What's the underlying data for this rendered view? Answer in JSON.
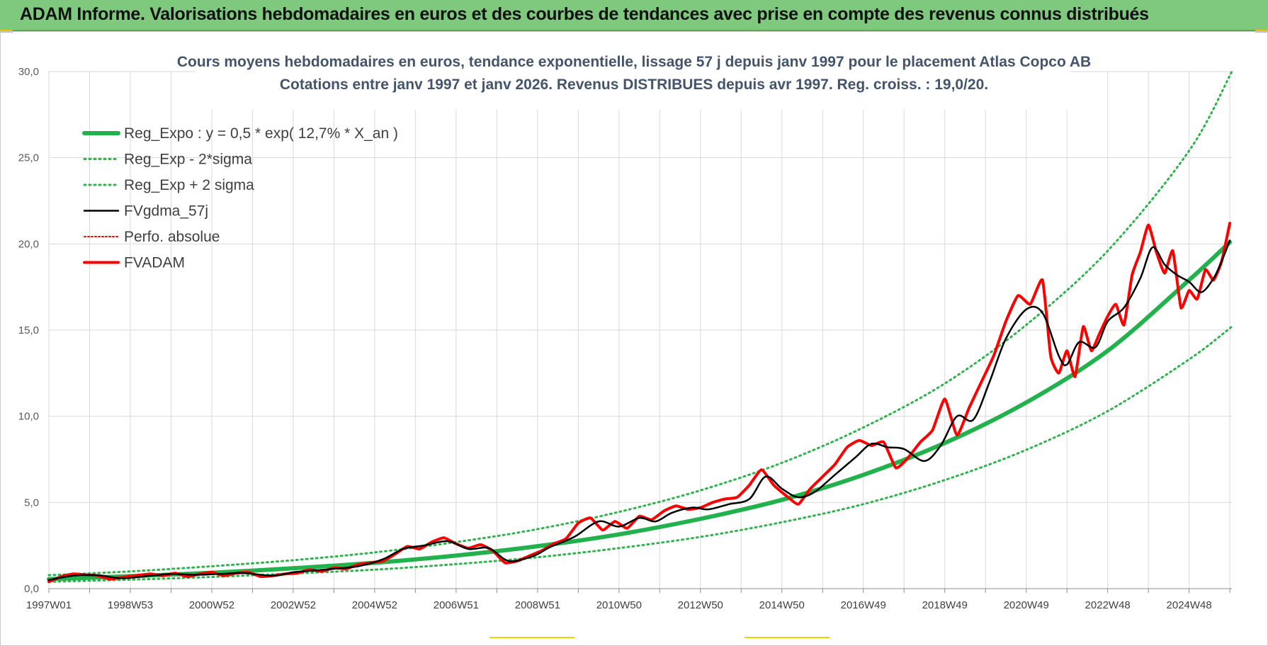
{
  "banner": {
    "title": "ADAM Informe. Valorisations hebdomadaires en euros et des courbes de tendances avec prise en compte des revenus connus distribués"
  },
  "colors": {
    "banner_bg": "#7fc97f",
    "trend_green": "#22b14c",
    "band_green": "#2fb34f",
    "smooth_black": "#000000",
    "price_red": "#ff0000",
    "title_slate": "#44546a"
  },
  "chart_data": {
    "type": "line",
    "title_line1": "Cours moyens hebdomadaires en euros, tendance exponentielle, lissage 57 j depuis janv 1997 pour le placement Atlas Copco AB",
    "title_line2": "Cotations entre janv 1997 et janv 2026. Revenus DISTRIBUES depuis avr 1997.  Reg. croiss. : 19,0/20.",
    "x_range_years": [
      1997.0,
      2026.05
    ],
    "ylim": [
      0,
      30
    ],
    "y_ticks": [
      "0,0",
      "5,0",
      "10,0",
      "15,0",
      "20,0",
      "25,0",
      "30,0"
    ],
    "x_tick_labels": [
      "1997W01",
      "1998W53",
      "2000W52",
      "2002W52",
      "2004W52",
      "2006W51",
      "2008W51",
      "2010W50",
      "2012W50",
      "2014W50",
      "2016W49",
      "2018W49",
      "2020W49",
      "2022W48",
      "2024W48"
    ],
    "x_tick_years": [
      1997.0,
      1999.0,
      2001.0,
      2003.0,
      2005.0,
      2007.0,
      2009.0,
      2011.0,
      2013.0,
      2015.0,
      2017.0,
      2019.0,
      2021.0,
      2023.0,
      2025.0
    ],
    "legend": [
      {
        "label": "Reg_Expo : y = 0,5 * exp( 12,7% *  X_an )",
        "style": "solid-thick-green"
      },
      {
        "label": "Reg_Exp - 2*sigma",
        "style": "dotted-green"
      },
      {
        "label": "Reg_Exp + 2 sigma",
        "style": "dotted-green"
      },
      {
        "label": "FVgdma_57j",
        "style": "solid-black"
      },
      {
        "label": "Perfo. absolue",
        "style": "dotted-red"
      },
      {
        "label": "FVADAM",
        "style": "solid-thick-red"
      }
    ],
    "series": [
      {
        "name": "Reg_Expo",
        "formula": "y = 0,5 * exp(12,7% * X_an)",
        "x": [
          1997.0,
          1999.0,
          2001.0,
          2003.0,
          2005.0,
          2007.0,
          2009.0,
          2011.0,
          2013.0,
          2015.0,
          2017.0,
          2019.0,
          2021.0,
          2023.0,
          2025.0,
          2026.0
        ],
        "values": [
          0.55,
          0.72,
          0.92,
          1.18,
          1.5,
          1.92,
          2.46,
          3.15,
          4.05,
          5.15,
          6.6,
          8.45,
          10.8,
          13.8,
          17.9,
          20.1
        ]
      },
      {
        "name": "Reg_Exp - 2*sigma",
        "x": [
          1997.0,
          1999.0,
          2001.0,
          2003.0,
          2005.0,
          2007.0,
          2009.0,
          2011.0,
          2013.0,
          2015.0,
          2017.0,
          2019.0,
          2021.0,
          2023.0,
          2025.0,
          2026.05
        ],
        "values": [
          0.4,
          0.52,
          0.68,
          0.88,
          1.1,
          1.42,
          1.82,
          2.35,
          3.0,
          3.85,
          4.9,
          6.3,
          8.05,
          10.3,
          13.3,
          15.2
        ]
      },
      {
        "name": "Reg_Exp + 2 sigma",
        "x": [
          1997.0,
          1999.0,
          2001.0,
          2003.0,
          2005.0,
          2007.0,
          2009.0,
          2011.0,
          2013.0,
          2015.0,
          2017.0,
          2019.0,
          2021.0,
          2023.0,
          2025.0,
          2026.05
        ],
        "values": [
          0.78,
          1.0,
          1.3,
          1.65,
          2.1,
          2.7,
          3.45,
          4.45,
          5.7,
          7.3,
          9.35,
          11.9,
          15.3,
          19.6,
          25.4,
          30.0
        ]
      },
      {
        "name": "FVgdma_57j",
        "x": [
          1997.0,
          1997.6,
          1998.2,
          1998.8,
          1999.5,
          2000.0,
          2000.6,
          2001.2,
          2001.8,
          2002.5,
          2003.0,
          2003.5,
          2004.0,
          2004.6,
          2005.2,
          2005.7,
          2006.2,
          2006.8,
          2007.3,
          2007.8,
          2008.3,
          2008.9,
          2009.3,
          2009.9,
          2010.5,
          2011.0,
          2011.5,
          2011.9,
          2012.3,
          2012.8,
          2013.2,
          2013.7,
          2014.2,
          2014.6,
          2015.0,
          2015.4,
          2015.8,
          2016.3,
          2016.8,
          2017.2,
          2017.6,
          2018.0,
          2018.5,
          2018.9,
          2019.3,
          2019.7,
          2020.1,
          2020.5,
          2021.0,
          2021.4,
          2021.8,
          2022.0,
          2022.3,
          2022.7,
          2023.0,
          2023.4,
          2023.8,
          2024.1,
          2024.4,
          2024.7,
          2025.0,
          2025.3,
          2025.6,
          2025.8,
          2026.0
        ],
        "values": [
          0.5,
          0.75,
          0.78,
          0.6,
          0.75,
          0.85,
          0.8,
          0.85,
          0.9,
          0.75,
          0.95,
          1.05,
          1.15,
          1.3,
          1.7,
          2.3,
          2.5,
          2.75,
          2.3,
          2.35,
          1.6,
          1.9,
          2.4,
          3.0,
          3.9,
          3.6,
          4.1,
          3.9,
          4.4,
          4.7,
          4.6,
          4.9,
          5.2,
          6.5,
          5.8,
          5.3,
          5.6,
          6.6,
          7.6,
          8.4,
          8.2,
          8.1,
          7.4,
          8.3,
          10.0,
          9.8,
          12.0,
          14.5,
          16.2,
          16.0,
          13.5,
          13.0,
          14.3,
          14.0,
          15.5,
          16.3,
          18.0,
          19.8,
          18.8,
          18.2,
          17.8,
          17.2,
          18.0,
          19.0,
          20.2
        ]
      },
      {
        "name": "FVADAM",
        "x": [
          1997.0,
          1997.3,
          1997.6,
          1997.9,
          1998.2,
          1998.5,
          1998.8,
          1999.1,
          1999.5,
          1999.8,
          2000.1,
          2000.4,
          2000.7,
          2001.0,
          2001.3,
          2001.6,
          2001.9,
          2002.2,
          2002.5,
          2002.8,
          2003.1,
          2003.4,
          2003.7,
          2004.0,
          2004.3,
          2004.6,
          2004.9,
          2005.2,
          2005.5,
          2005.8,
          2006.1,
          2006.4,
          2006.7,
          2007.0,
          2007.3,
          2007.6,
          2007.9,
          2008.2,
          2008.5,
          2008.8,
          2009.1,
          2009.4,
          2009.7,
          2010.0,
          2010.3,
          2010.6,
          2010.9,
          2011.2,
          2011.5,
          2011.8,
          2012.1,
          2012.4,
          2012.7,
          2013.0,
          2013.3,
          2013.6,
          2013.9,
          2014.2,
          2014.5,
          2014.8,
          2015.1,
          2015.4,
          2015.7,
          2016.0,
          2016.3,
          2016.6,
          2016.9,
          2017.2,
          2017.5,
          2017.8,
          2018.1,
          2018.4,
          2018.7,
          2019.0,
          2019.3,
          2019.6,
          2019.9,
          2020.2,
          2020.5,
          2020.8,
          2021.1,
          2021.4,
          2021.6,
          2021.8,
          2022.0,
          2022.2,
          2022.4,
          2022.6,
          2022.8,
          2023.0,
          2023.2,
          2023.4,
          2023.6,
          2023.8,
          2024.0,
          2024.2,
          2024.4,
          2024.6,
          2024.8,
          2025.0,
          2025.2,
          2025.4,
          2025.6,
          2025.8,
          2026.0
        ],
        "values": [
          0.4,
          0.7,
          0.85,
          0.8,
          0.75,
          0.55,
          0.65,
          0.75,
          0.85,
          0.75,
          0.9,
          0.7,
          0.85,
          0.95,
          0.75,
          0.9,
          0.95,
          0.7,
          0.75,
          0.85,
          0.9,
          1.1,
          1.0,
          1.2,
          1.15,
          1.4,
          1.5,
          1.6,
          2.0,
          2.45,
          2.3,
          2.7,
          2.95,
          2.6,
          2.35,
          2.55,
          2.2,
          1.5,
          1.6,
          1.9,
          2.2,
          2.6,
          2.9,
          3.8,
          4.1,
          3.4,
          3.9,
          3.5,
          4.2,
          4.0,
          4.5,
          4.8,
          4.6,
          4.7,
          5.0,
          5.2,
          5.3,
          6.0,
          6.9,
          6.0,
          5.4,
          4.9,
          5.8,
          6.5,
          7.2,
          8.2,
          8.6,
          8.3,
          8.5,
          7.0,
          7.6,
          8.5,
          9.2,
          11.0,
          8.9,
          10.5,
          12.0,
          13.5,
          15.5,
          17.0,
          16.5,
          17.9,
          13.5,
          12.5,
          13.8,
          12.3,
          15.2,
          13.8,
          14.8,
          15.8,
          16.5,
          15.3,
          18.2,
          19.5,
          21.1,
          19.5,
          18.3,
          19.6,
          16.3,
          17.3,
          16.8,
          18.5,
          17.9,
          19.0,
          21.2
        ]
      }
    ]
  }
}
